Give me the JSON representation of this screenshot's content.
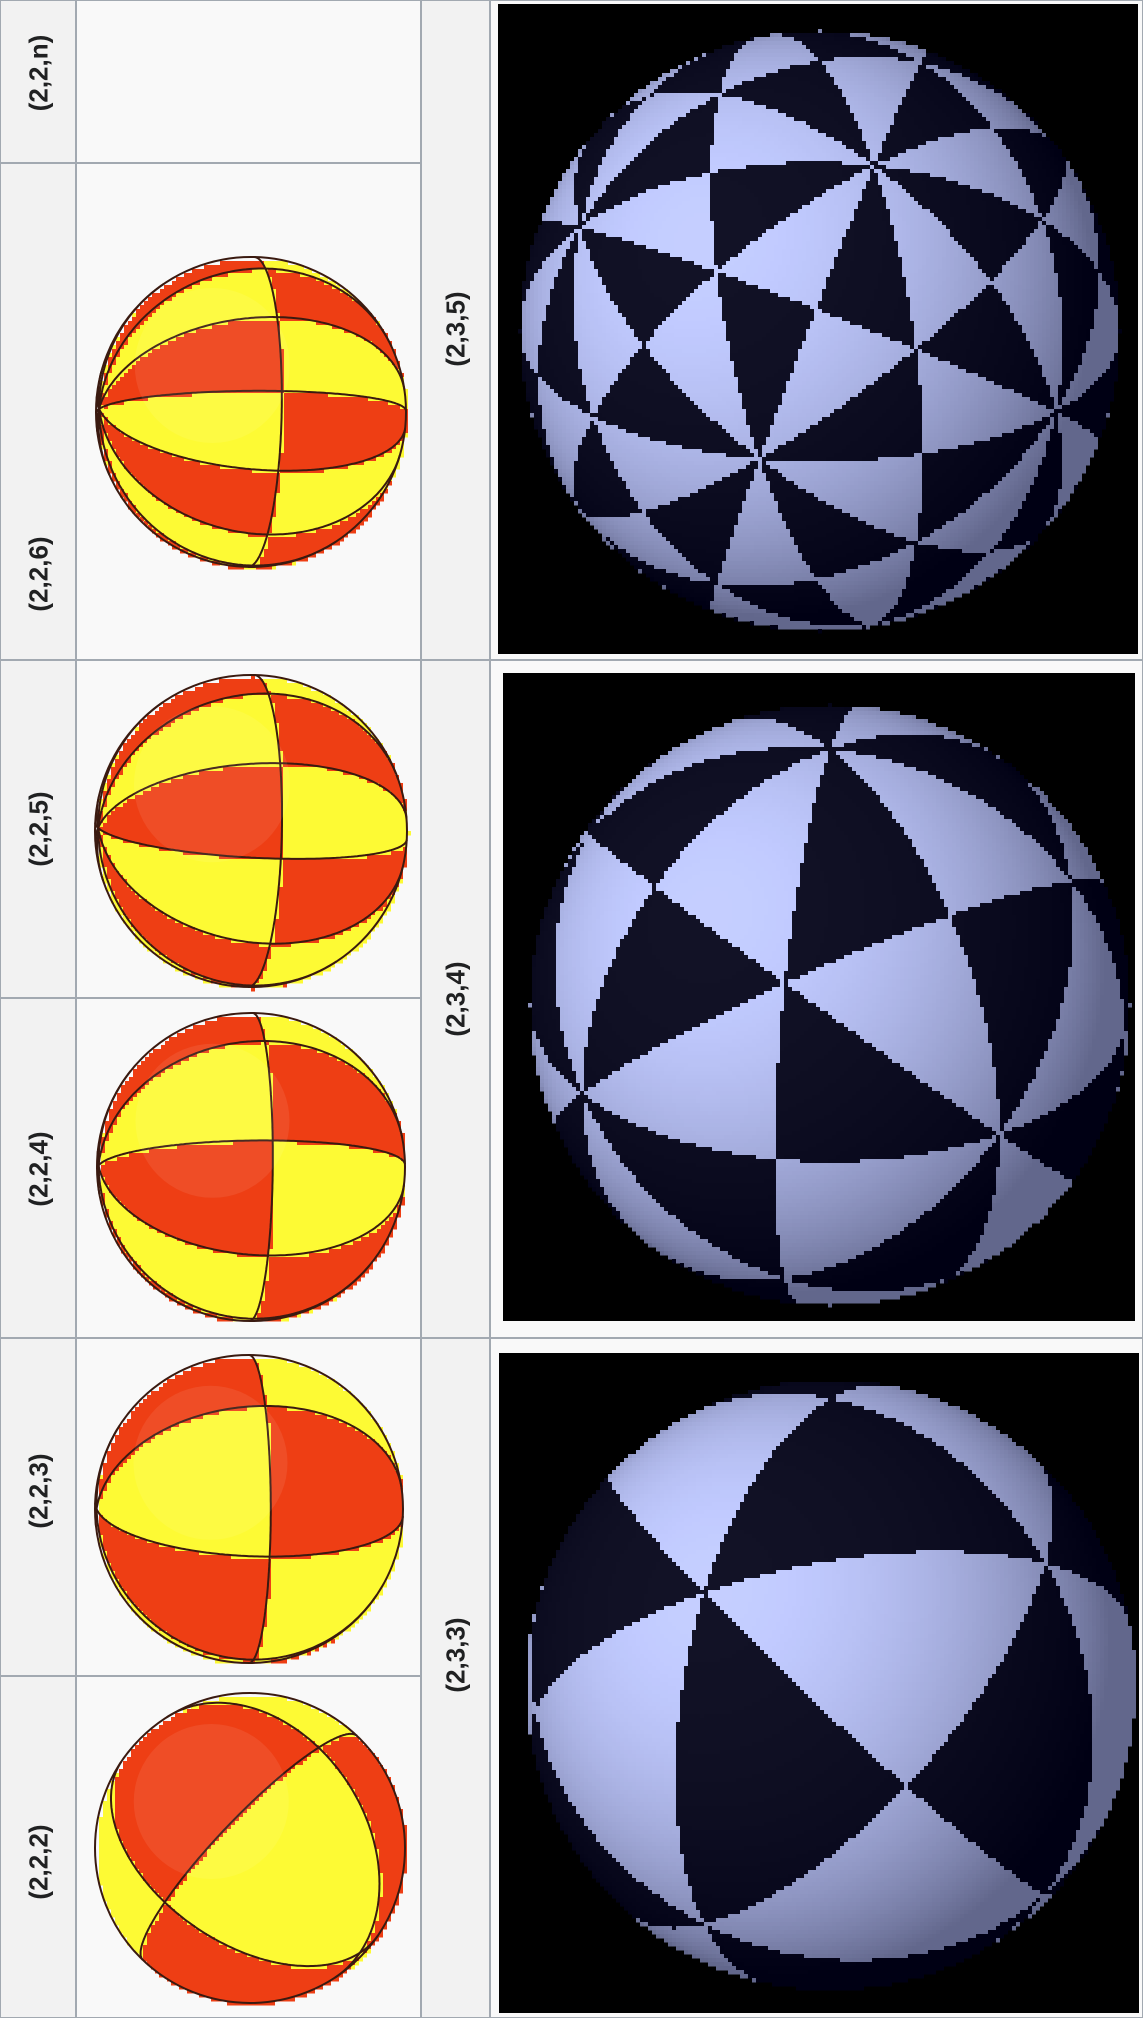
{
  "rows": [
    {
      "dihedral": [
        {
          "label": "(2,2,n)"
        },
        {
          "label": "(2,2,6)"
        }
      ],
      "polyhedral": {
        "label": "(2,3,5)"
      }
    },
    {
      "dihedral": [
        {
          "label": "(2,2,5)"
        },
        {
          "label": "(2,2,4)"
        }
      ],
      "polyhedral": {
        "label": "(2,3,4)"
      }
    },
    {
      "dihedral": [
        {
          "label": "(2,2,3)"
        },
        {
          "label": "(2,2,2)"
        }
      ],
      "polyhedral": {
        "label": "(2,3,3)"
      }
    }
  ],
  "colors": {
    "red": "#ee3e14",
    "yellow": "#fdfa34",
    "blue_light": "#cfd6ff",
    "black": "#000000"
  }
}
